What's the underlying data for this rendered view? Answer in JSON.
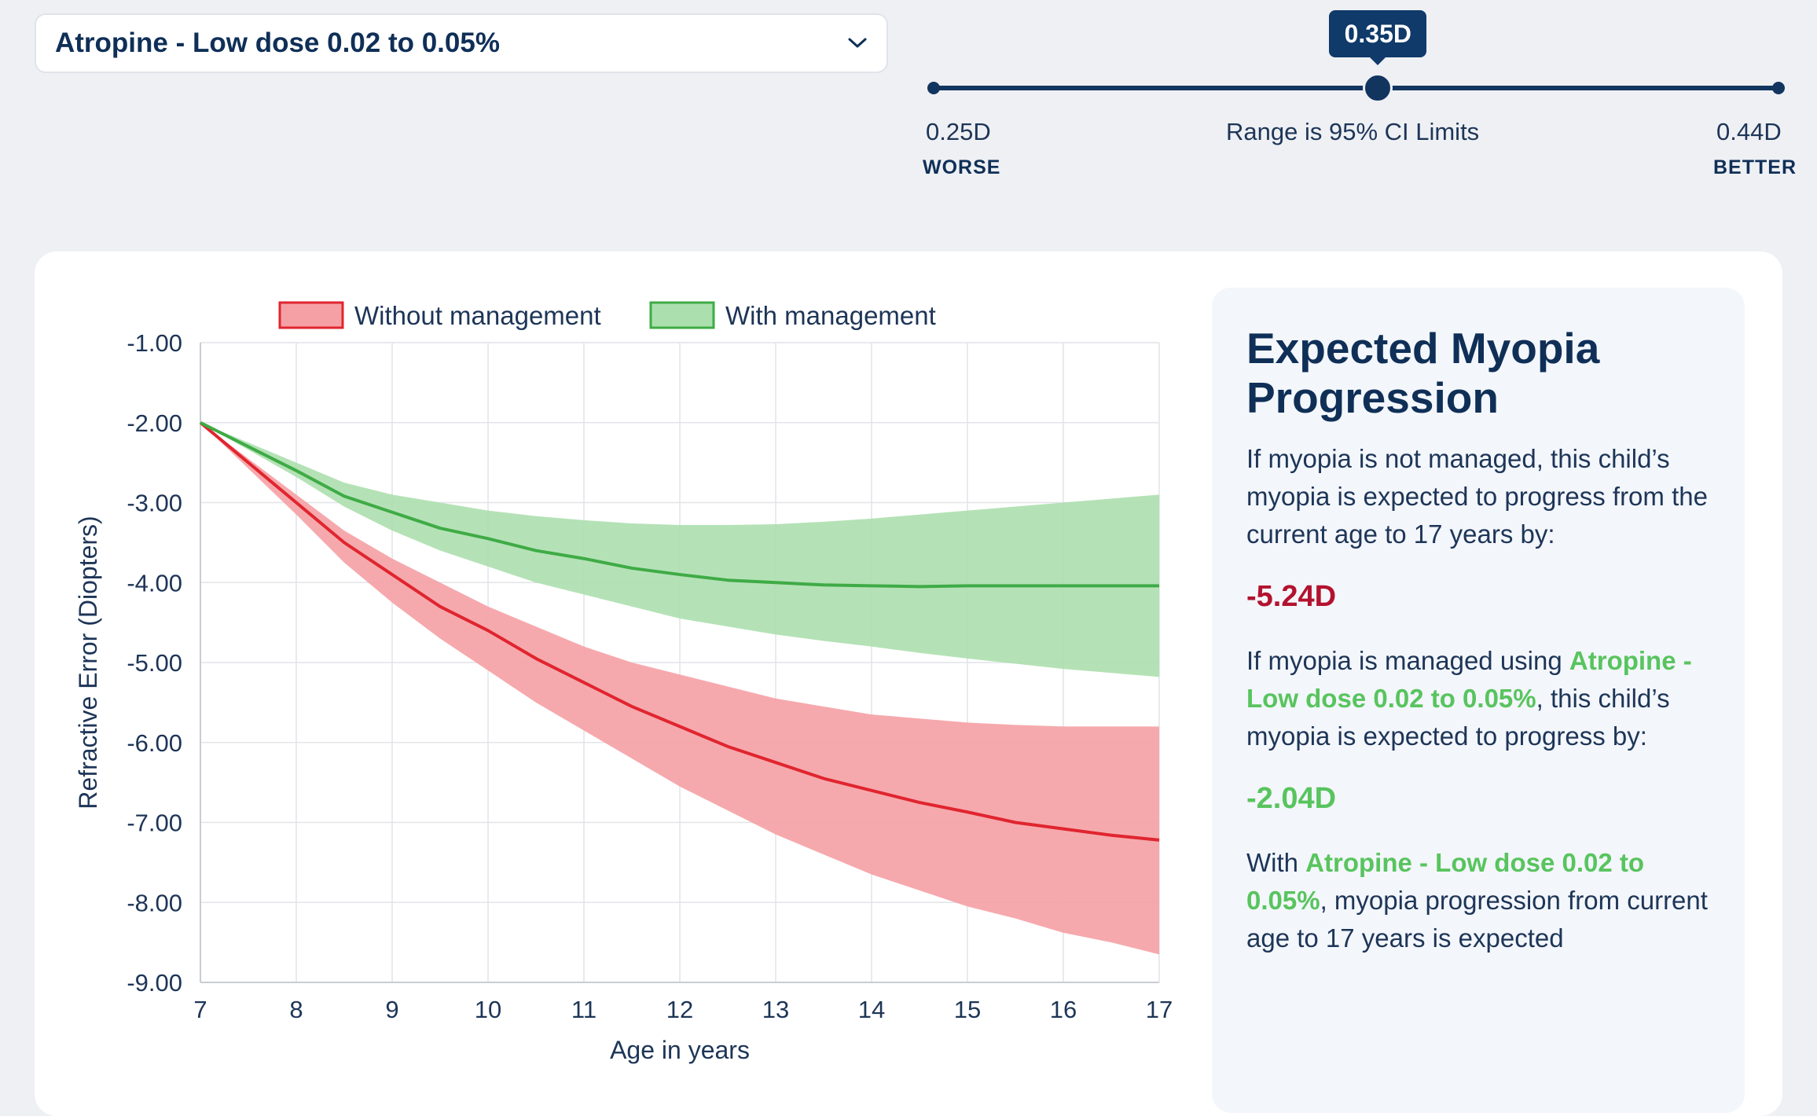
{
  "treatment_select": {
    "selected": "Atropine - Low dose 0.02 to 0.05%"
  },
  "slider": {
    "current_label": "0.35D",
    "min_label": "0.25D",
    "max_label": "0.44D",
    "range_note": "Range is 95% CI Limits",
    "worse_label": "WORSE",
    "better_label": "BETTER",
    "current_value": 0.35,
    "min": 0.25,
    "max": 0.44
  },
  "info": {
    "title": "Expected Myopia Progression",
    "unmanaged_text": "If myopia is not managed, this child’s myopia is expected to progress from the current age to 17 years by:",
    "unmanaged_value": "-5.24D",
    "managed_text_prefix": "If myopia is managed using",
    "managed_treatment": "Atropine - Low dose 0.02 to 0.05%",
    "managed_text_suffix": ", this child’s myopia is expected to progress by:",
    "managed_value": "-2.04D",
    "with_prefix": "With",
    "with_treatment": "Atropine - Low dose 0.02 to 0.05%",
    "with_suffix": ", myopia progression from current age to 17 years is expected"
  },
  "colors": {
    "red_line": "#e0252f",
    "red_band": "#f5a0a4",
    "green_line": "#3fab46",
    "green_band": "#acdfae",
    "grid": "#e2e4e8",
    "axis_text": "#1d3557"
  },
  "chart_data": {
    "type": "line",
    "xlabel": "Age in years",
    "ylabel": "Refractive Error (Diopters)",
    "x": [
      7,
      8,
      9,
      10,
      11,
      12,
      13,
      14,
      15,
      16,
      17
    ],
    "x_ticks": [
      "7",
      "8",
      "9",
      "10",
      "11",
      "12",
      "13",
      "14",
      "15",
      "16",
      "17"
    ],
    "xlim": [
      7,
      17
    ],
    "ylim": [
      -9,
      -1
    ],
    "y_ticks": [
      "-1.00",
      "-2.00",
      "-3.00",
      "-4.00",
      "-5.00",
      "-6.00",
      "-7.00",
      "-8.00",
      "-9.00"
    ],
    "y_tick_values": [
      -1,
      -2,
      -3,
      -4,
      -5,
      -6,
      -7,
      -8,
      -9
    ],
    "legend": [
      "Without management",
      "With management"
    ],
    "series": [
      {
        "name": "Without management",
        "x": [
          7,
          8,
          8.5,
          9,
          9.5,
          10,
          10.5,
          11,
          11.5,
          12,
          12.5,
          13,
          13.5,
          14,
          14.5,
          15,
          15.5,
          16,
          16.5,
          17
        ],
        "values": [
          -2.0,
          -3.0,
          -3.5,
          -3.9,
          -4.3,
          -4.6,
          -4.95,
          -5.25,
          -5.55,
          -5.8,
          -6.05,
          -6.25,
          -6.45,
          -6.6,
          -6.75,
          -6.87,
          -7.0,
          -7.08,
          -7.16,
          -7.22
        ],
        "upper": [
          -2.0,
          -2.9,
          -3.35,
          -3.7,
          -4.0,
          -4.3,
          -4.55,
          -4.8,
          -5.0,
          -5.15,
          -5.3,
          -5.45,
          -5.55,
          -5.65,
          -5.7,
          -5.75,
          -5.78,
          -5.8,
          -5.8,
          -5.8
        ],
        "lower": [
          -2.0,
          -3.15,
          -3.75,
          -4.25,
          -4.7,
          -5.1,
          -5.5,
          -5.85,
          -6.2,
          -6.55,
          -6.85,
          -7.15,
          -7.4,
          -7.65,
          -7.85,
          -8.05,
          -8.2,
          -8.38,
          -8.5,
          -8.65
        ]
      },
      {
        "name": "With management",
        "x": [
          7,
          8,
          8.5,
          9,
          9.5,
          10,
          10.5,
          11,
          11.5,
          12,
          12.5,
          13,
          13.5,
          14,
          14.5,
          15,
          16,
          17
        ],
        "values": [
          -2.0,
          -2.6,
          -2.92,
          -3.12,
          -3.32,
          -3.45,
          -3.6,
          -3.7,
          -3.82,
          -3.9,
          -3.97,
          -4.0,
          -4.03,
          -4.04,
          -4.05,
          -4.04,
          -4.04,
          -4.04
        ],
        "upper": [
          -2.0,
          -2.5,
          -2.75,
          -2.9,
          -3.0,
          -3.1,
          -3.17,
          -3.22,
          -3.26,
          -3.28,
          -3.28,
          -3.27,
          -3.24,
          -3.2,
          -3.15,
          -3.1,
          -3.0,
          -2.9
        ],
        "lower": [
          -2.0,
          -2.68,
          -3.05,
          -3.35,
          -3.6,
          -3.8,
          -4.0,
          -4.15,
          -4.3,
          -4.45,
          -4.55,
          -4.65,
          -4.73,
          -4.8,
          -4.88,
          -4.95,
          -5.08,
          -5.18
        ]
      }
    ]
  }
}
